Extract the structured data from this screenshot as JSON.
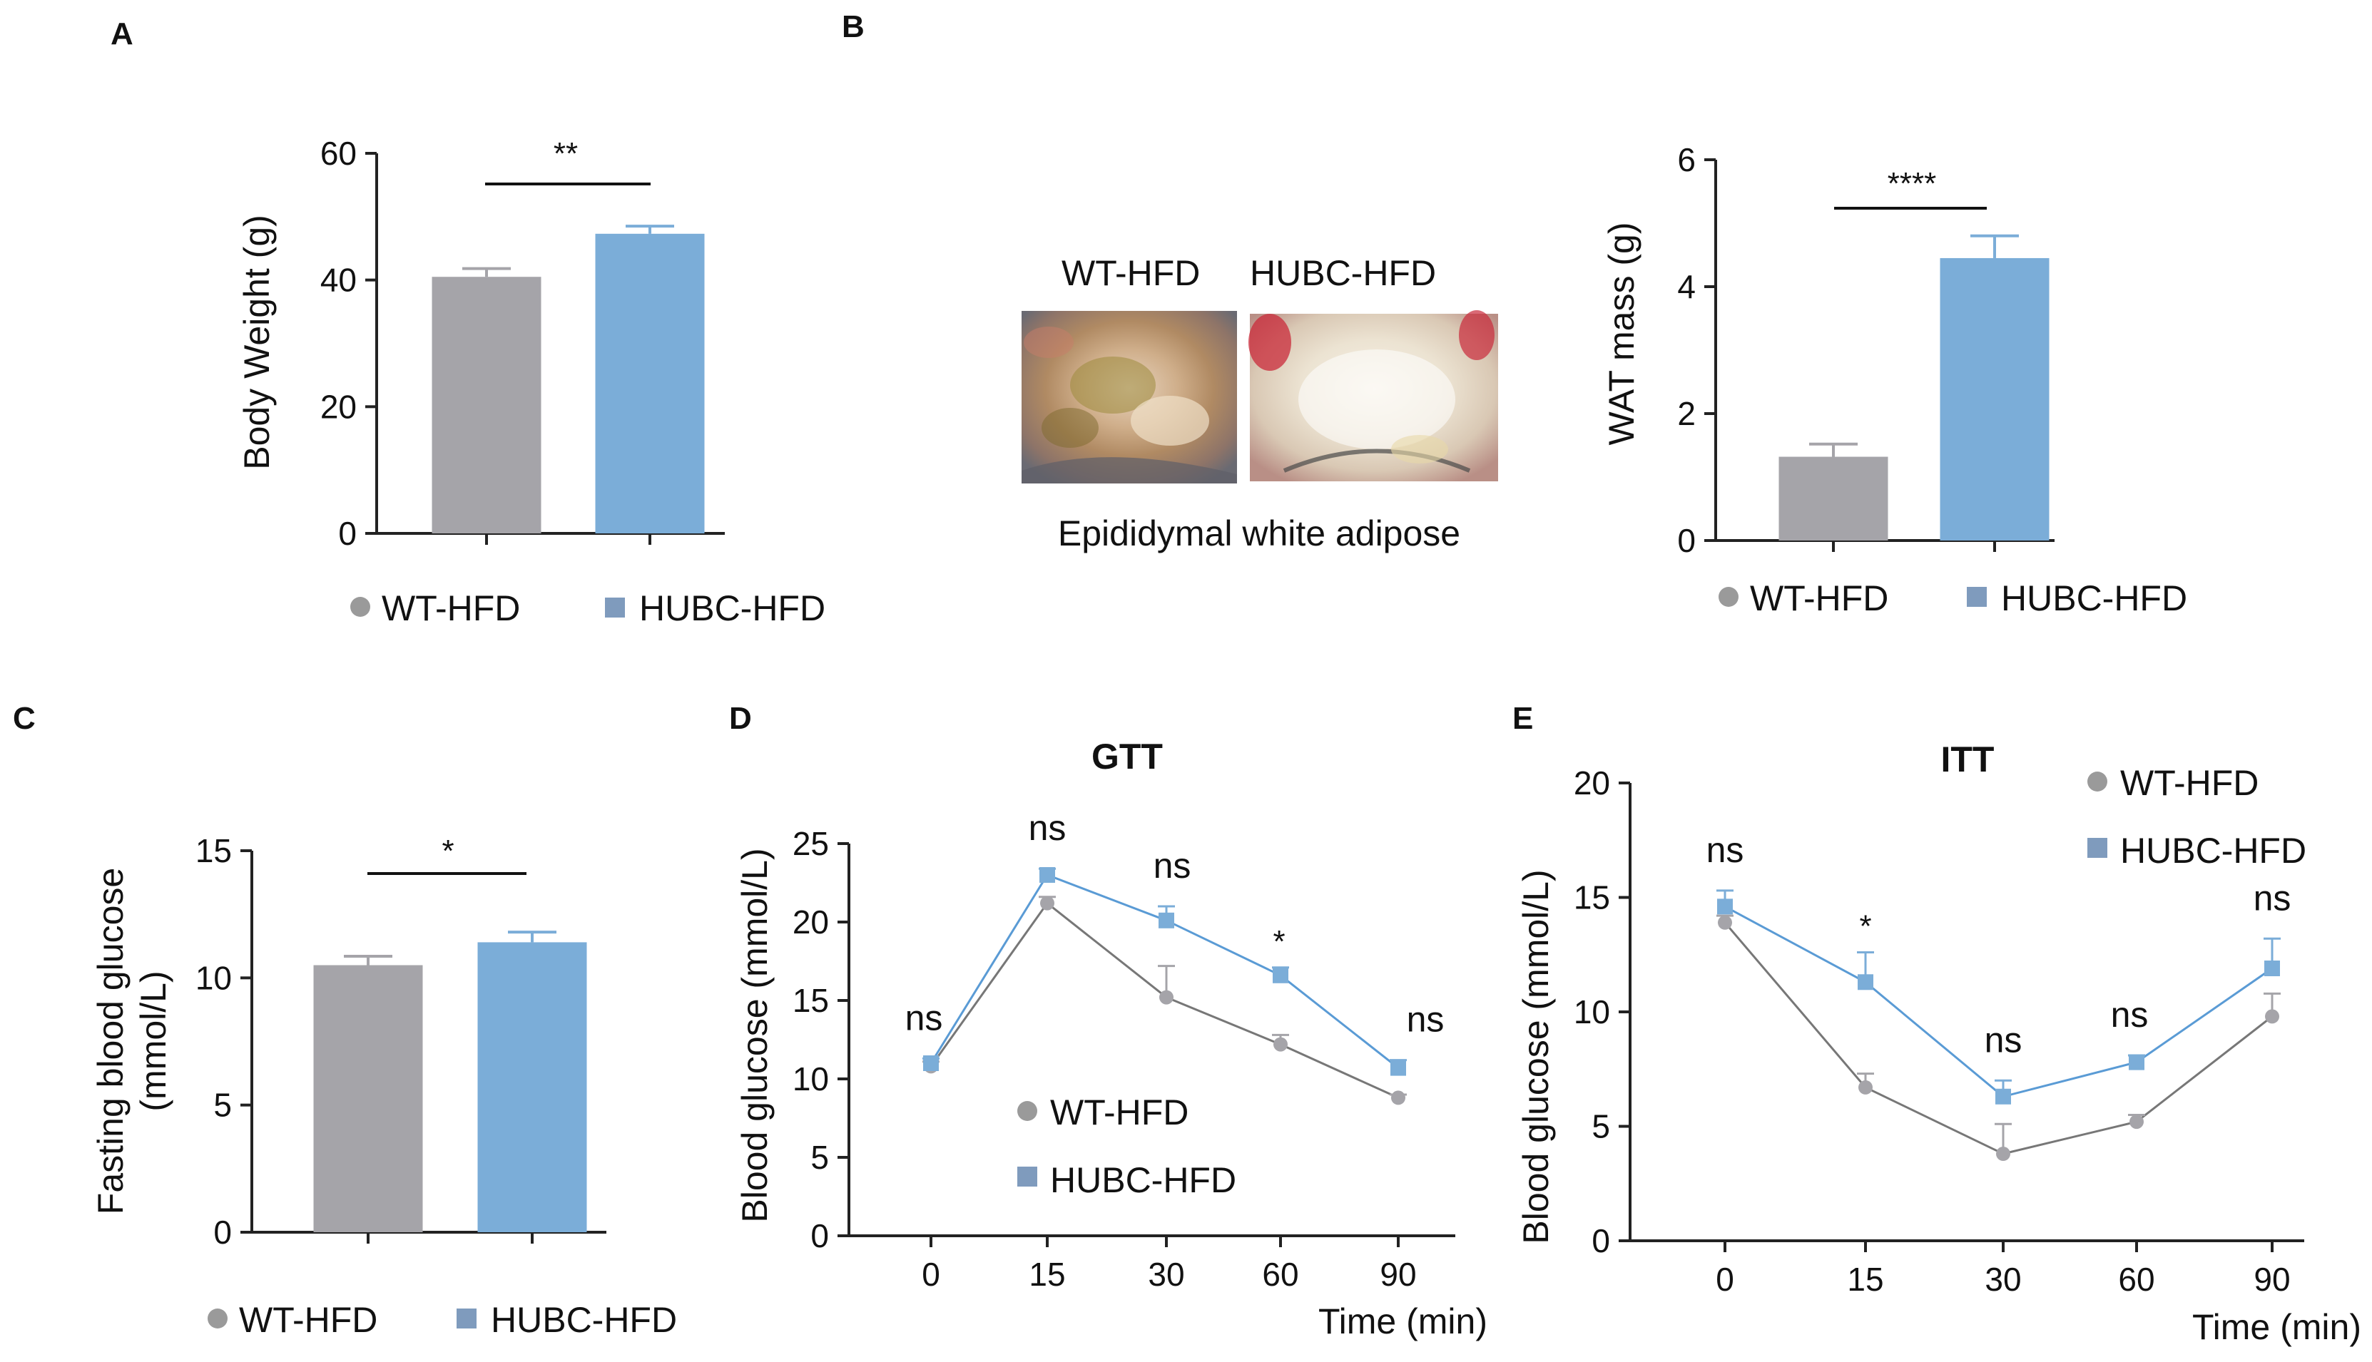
{
  "colors": {
    "wt": "#a5a4a9",
    "hubc": "#7badd8",
    "wt_line": "#777777",
    "hubc_line": "#5a9bd5",
    "legend_wt": "#9a9a9a",
    "legend_hubc": "#7f9bbd"
  },
  "legend": {
    "wt": "WT-HFD",
    "hubc": "HUBC-HFD"
  },
  "panelA": {
    "letter": "A",
    "sig": "**",
    "chart_data": {
      "type": "bar",
      "categories": [
        "WT-HFD",
        "HUBC-HFD"
      ],
      "values": [
        40.5,
        47.3
      ],
      "errors": [
        1.3,
        1.2
      ],
      "ylabel": "Body Weight (g)",
      "ylim": [
        0,
        60
      ],
      "yticks": [
        0,
        20,
        40,
        60
      ]
    }
  },
  "panelB": {
    "letter": "B",
    "photo_labels": [
      "WT-HFD",
      "HUBC-HFD"
    ],
    "caption": "Epididymal white adipose",
    "sig": "****",
    "chart_data": {
      "type": "bar",
      "categories": [
        "WT-HFD",
        "HUBC-HFD"
      ],
      "values": [
        1.32,
        4.45
      ],
      "errors": [
        0.2,
        0.35
      ],
      "ylabel": "WAT mass (g)",
      "ylim": [
        0,
        6
      ],
      "yticks": [
        0,
        2,
        4,
        6
      ]
    }
  },
  "panelC": {
    "letter": "C",
    "sig": "*",
    "chart_data": {
      "type": "bar",
      "categories": [
        "WT-HFD",
        "HUBC-HFD"
      ],
      "values": [
        10.5,
        11.4
      ],
      "errors": [
        0.35,
        0.4
      ],
      "ylabel_lines": [
        "Fasting blood glucose",
        "(mmol/L)"
      ],
      "ylim": [
        0,
        15
      ],
      "yticks": [
        0,
        5,
        10,
        15
      ]
    }
  },
  "panelD": {
    "letter": "D",
    "chart_data": {
      "type": "line",
      "title": "GTT",
      "xlabel": "Time (min)",
      "ylabel": "Blood glucose (mmol/L)",
      "x": [
        0,
        15,
        30,
        60,
        90
      ],
      "ylim": [
        0,
        25
      ],
      "yticks": [
        0,
        5,
        10,
        15,
        20,
        25
      ],
      "series": [
        {
          "name": "WT-HFD",
          "values": [
            10.8,
            21.2,
            15.2,
            12.2,
            8.8
          ],
          "errors": [
            0.3,
            0.4,
            2.0,
            0.6,
            0.2
          ]
        },
        {
          "name": "HUBC-HFD",
          "values": [
            11.0,
            23.0,
            20.1,
            16.6,
            10.7
          ],
          "errors": [
            0.3,
            0.4,
            0.9,
            0.5,
            0.5
          ]
        }
      ],
      "significance": [
        "ns",
        "ns",
        "ns",
        "*",
        "ns"
      ]
    }
  },
  "panelE": {
    "letter": "E",
    "chart_data": {
      "type": "line",
      "title": "ITT",
      "xlabel": "Time (min)",
      "ylabel": "Blood glucose (mmol/L)",
      "x": [
        0,
        15,
        30,
        60,
        90
      ],
      "ylim": [
        0,
        20
      ],
      "yticks": [
        0,
        5,
        10,
        15,
        20
      ],
      "series": [
        {
          "name": "WT-HFD",
          "values": [
            13.9,
            6.7,
            3.8,
            5.2,
            9.8
          ],
          "errors": [
            0.3,
            0.6,
            1.3,
            0.3,
            1.0
          ]
        },
        {
          "name": "HUBC-HFD",
          "values": [
            14.6,
            11.3,
            6.3,
            7.8,
            11.9
          ],
          "errors": [
            0.7,
            1.3,
            0.7,
            0.3,
            1.3
          ]
        }
      ],
      "significance": [
        "ns",
        "*",
        "ns",
        "ns",
        "ns"
      ]
    }
  }
}
